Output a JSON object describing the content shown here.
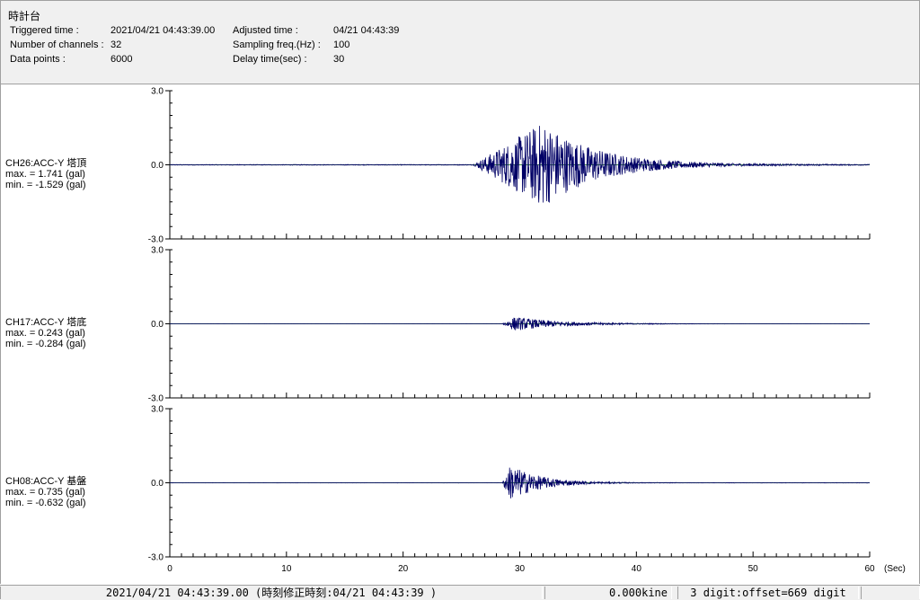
{
  "header": {
    "title": "時計台",
    "triggered_label": "Triggered time :",
    "triggered_value": "2021/04/21 04:43:39.00",
    "channels_label": "Number of channels :",
    "channels_value": "32",
    "datapoints_label": "Data points :",
    "datapoints_value": "6000",
    "adjusted_label": "Adjusted time :",
    "adjusted_value": "04/21 04:43:39",
    "sampling_label": "Sampling freq.(Hz) :",
    "sampling_value": "100",
    "delay_label": "Delay time(sec) :",
    "delay_value": "30"
  },
  "chart_data": {
    "type": "line",
    "xlabel": "(Sec)",
    "xlim": [
      0,
      60
    ],
    "x_ticks": [
      "0",
      "10",
      "20",
      "30",
      "40",
      "50",
      "60"
    ],
    "line_color": "#000066",
    "series": [
      {
        "name": "CH26:ACC-Y 塔頂",
        "max_text": "max. = 1.741 (gal)",
        "min_text": "min. = -1.529 (gal)",
        "max": 1.741,
        "min": -1.529,
        "ylim": [
          -3.0,
          3.0
        ],
        "y_ticks": [
          "3.0",
          "0.0",
          "-3.0"
        ],
        "onset": 26,
        "peak_time": 32,
        "decay": 4.5
      },
      {
        "name": "CH17:ACC-Y 塔底",
        "max_text": "max. = 0.243 (gal)",
        "min_text": "min. = -0.284 (gal)",
        "max": 0.243,
        "min": -0.284,
        "ylim": [
          -3.0,
          3.0
        ],
        "y_ticks": [
          "3.0",
          "0.0",
          "-3.0"
        ],
        "onset": 28.5,
        "peak_time": 29.5,
        "decay": 4
      },
      {
        "name": "CH08:ACC-Y 基盤",
        "max_text": "max. = 0.735 (gal)",
        "min_text": "min. = -0.632 (gal)",
        "max": 0.735,
        "min": -0.632,
        "ylim": [
          -3.0,
          3.0
        ],
        "y_ticks": [
          "3.0",
          "0.0",
          "-3.0"
        ],
        "onset": 28.5,
        "peak_time": 29.2,
        "decay": 2.5
      }
    ]
  },
  "status": {
    "time_text": "2021/04/21 04:43:39.00 (時刻修正時刻:04/21 04:43:39 )",
    "kine_text": "0.000kine",
    "offset_text": "3 digit:offset=669 digit"
  }
}
